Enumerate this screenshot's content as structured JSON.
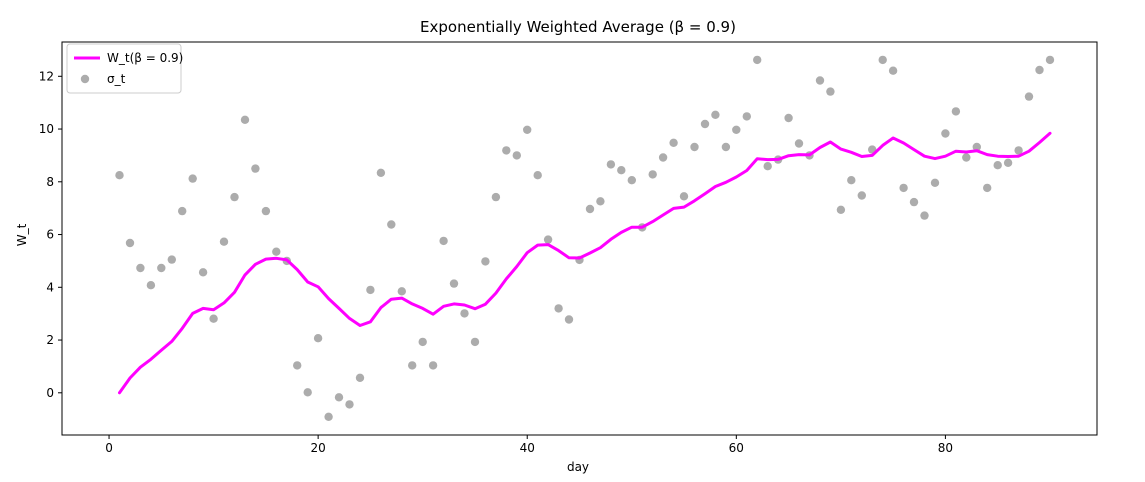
{
  "chart_data": {
    "type": "scatter",
    "title": "Exponentially Weighted Average (β = 0.9)",
    "xlabel": "day",
    "ylabel": "W_t",
    "xlim": [
      -4.5,
      94.5
    ],
    "ylim": [
      -1.6,
      13.3
    ],
    "xticks": [
      0,
      20,
      40,
      60,
      80
    ],
    "yticks": [
      0,
      2,
      4,
      6,
      8,
      10,
      12
    ],
    "grid": false,
    "legend_position": "top-left",
    "colors": {
      "line": "#ff00ff",
      "points": "#808080"
    },
    "series": [
      {
        "name": "W_t(β = 0.9)",
        "kind": "line",
        "x": [
          1,
          2,
          3,
          4,
          5,
          6,
          7,
          8,
          9,
          10,
          11,
          12,
          13,
          14,
          15,
          16,
          17,
          18,
          19,
          20,
          21,
          22,
          23,
          24,
          25,
          26,
          27,
          28,
          29,
          30,
          31,
          32,
          33,
          34,
          35,
          36,
          37,
          38,
          39,
          40,
          41,
          42,
          43,
          44,
          45,
          46,
          47,
          48,
          49,
          50,
          51,
          52,
          53,
          54,
          55,
          56,
          57,
          58,
          59,
          60,
          61,
          62,
          63,
          64,
          65,
          66,
          67,
          68,
          69,
          70,
          71,
          72,
          73,
          74,
          75,
          76,
          77,
          78,
          79,
          80,
          81,
          82,
          83,
          84,
          85,
          86,
          87,
          88,
          89,
          90
        ],
        "y": [
          0.0,
          0.56,
          0.97,
          1.27,
          1.61,
          1.95,
          2.44,
          3.01,
          3.2,
          3.15,
          3.41,
          3.81,
          4.47,
          4.87,
          5.07,
          5.1,
          5.04,
          4.67,
          4.2,
          4.02,
          3.57,
          3.2,
          2.82,
          2.55,
          2.69,
          3.23,
          3.55,
          3.59,
          3.37,
          3.2,
          2.98,
          3.28,
          3.37,
          3.33,
          3.19,
          3.36,
          3.78,
          4.32,
          4.79,
          5.31,
          5.6,
          5.62,
          5.39,
          5.12,
          5.11,
          5.3,
          5.5,
          5.82,
          6.08,
          6.28,
          6.28,
          6.49,
          6.74,
          6.99,
          7.04,
          7.28,
          7.55,
          7.82,
          7.98,
          8.18,
          8.43,
          8.87,
          8.84,
          8.85,
          8.99,
          9.03,
          9.02,
          9.3,
          9.51,
          9.24,
          9.12,
          8.96,
          9.0,
          9.38,
          9.66,
          9.47,
          9.22,
          8.97,
          8.88,
          8.97,
          9.16,
          9.13,
          9.18,
          9.03,
          8.97,
          8.96,
          8.97,
          9.16,
          9.49,
          9.84
        ]
      },
      {
        "name": "σ_t",
        "kind": "scatter",
        "x": [
          1,
          2,
          3,
          4,
          5,
          6,
          7,
          8,
          9,
          10,
          11,
          12,
          13,
          14,
          15,
          16,
          17,
          18,
          19,
          20,
          21,
          22,
          23,
          24,
          25,
          26,
          27,
          28,
          29,
          30,
          31,
          32,
          33,
          34,
          35,
          36,
          37,
          38,
          39,
          40,
          41,
          42,
          43,
          44,
          45,
          46,
          47,
          48,
          49,
          50,
          51,
          52,
          53,
          54,
          55,
          56,
          57,
          58,
          59,
          60,
          61,
          62,
          63,
          64,
          65,
          66,
          67,
          68,
          69,
          70,
          71,
          72,
          73,
          74,
          75,
          76,
          77,
          78,
          79,
          80,
          81,
          82,
          83,
          84,
          85,
          86,
          87,
          88,
          89,
          90
        ],
        "y": [
          8.25,
          5.68,
          4.73,
          4.08,
          4.73,
          5.05,
          6.89,
          8.12,
          4.57,
          2.81,
          5.73,
          7.42,
          10.35,
          8.5,
          6.89,
          5.35,
          5.0,
          1.04,
          0.02,
          2.07,
          -0.91,
          -0.17,
          -0.44,
          0.57,
          3.9,
          8.34,
          6.38,
          3.85,
          1.04,
          1.93,
          1.04,
          5.76,
          4.14,
          3.01,
          1.93,
          4.98,
          7.42,
          9.19,
          9.0,
          9.97,
          8.25,
          5.81,
          3.2,
          2.78,
          5.04,
          6.97,
          7.26,
          8.66,
          8.44,
          8.06,
          6.27,
          8.28,
          8.92,
          9.48,
          7.45,
          9.32,
          10.19,
          10.54,
          9.32,
          9.97,
          10.48,
          12.62,
          8.59,
          8.84,
          10.42,
          9.45,
          9.0,
          11.84,
          11.42,
          6.94,
          8.06,
          7.48,
          9.22,
          12.62,
          12.21,
          7.77,
          7.23,
          6.72,
          7.96,
          9.83,
          10.67,
          8.92,
          9.32,
          7.77,
          8.63,
          8.72,
          9.19,
          11.23,
          12.24,
          12.62
        ]
      }
    ]
  }
}
